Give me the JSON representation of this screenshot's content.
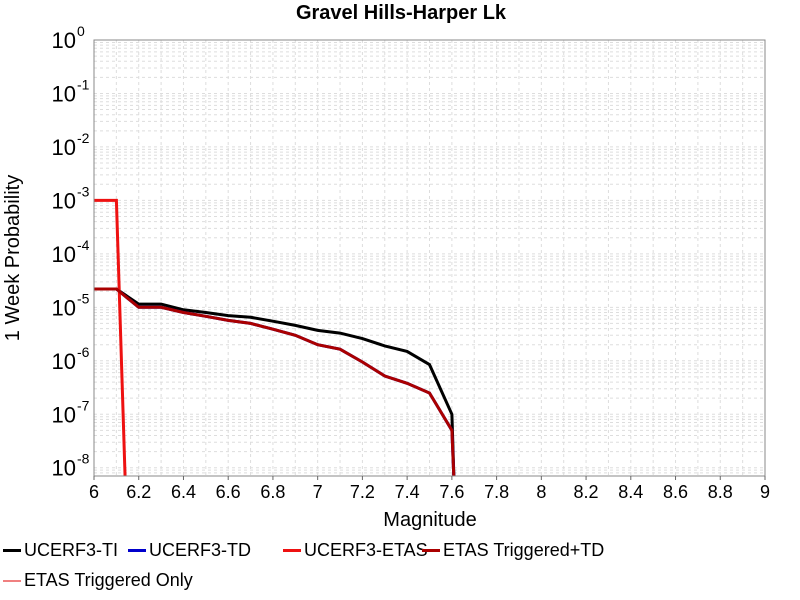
{
  "chart_data": {
    "type": "line",
    "title": "Gravel Hills-Harper Lk",
    "xlabel": "Magnitude",
    "ylabel": "1 Week Probability",
    "xlim": [
      6,
      9
    ],
    "ylim": [
      7e-09,
      1
    ],
    "yscale": "log",
    "grid": true,
    "legend_position": "bottom",
    "x_ticks": [
      "6",
      "6.2",
      "6.4",
      "6.6",
      "6.8",
      "7",
      "7.2",
      "7.4",
      "7.6",
      "7.8",
      "8",
      "8.2",
      "8.4",
      "8.6",
      "8.8",
      "9"
    ],
    "y_ticks": [
      {
        "base": "10",
        "exp": "0",
        "value": 1
      },
      {
        "base": "10",
        "exp": "-1",
        "value": 0.1
      },
      {
        "base": "10",
        "exp": "-2",
        "value": 0.01
      },
      {
        "base": "10",
        "exp": "-3",
        "value": 0.001
      },
      {
        "base": "10",
        "exp": "-4",
        "value": 0.0001
      },
      {
        "base": "10",
        "exp": "-5",
        "value": 1e-05
      },
      {
        "base": "10",
        "exp": "-6",
        "value": 1e-06
      },
      {
        "base": "10",
        "exp": "-7",
        "value": 1e-07
      },
      {
        "base": "10",
        "exp": "-8",
        "value": 1e-08
      }
    ],
    "series": [
      {
        "name": "UCERF3-TI",
        "color": "#000000",
        "x": [
          6.0,
          6.1,
          6.2,
          6.3,
          6.4,
          6.5,
          6.6,
          6.7,
          6.8,
          6.9,
          7.0,
          7.1,
          7.2,
          7.3,
          7.4,
          7.5,
          7.6,
          7.61
        ],
        "y": [
          2.2e-05,
          2.2e-05,
          1.15e-05,
          1.15e-05,
          9e-06,
          8e-06,
          7e-06,
          6.5e-06,
          5.5e-06,
          4.6e-06,
          3.7e-06,
          3.3e-06,
          2.6e-06,
          1.9e-06,
          1.5e-06,
          8.5e-07,
          1e-07,
          5e-09
        ]
      },
      {
        "name": "UCERF3-TD",
        "color": "#0000cc",
        "x": [
          6.0,
          6.1,
          6.2,
          6.3,
          6.4,
          6.5,
          6.6,
          6.7,
          6.8,
          6.9,
          7.0,
          7.1,
          7.2,
          7.3,
          7.4,
          7.5,
          7.6,
          7.61
        ],
        "y": [
          2.2e-05,
          2.2e-05,
          1e-05,
          1e-05,
          8e-06,
          6.8e-06,
          5.7e-06,
          5e-06,
          3.9e-06,
          3e-06,
          2e-06,
          1.65e-06,
          9.5e-07,
          5.2e-07,
          3.8e-07,
          2.5e-07,
          5e-08,
          5e-09
        ]
      },
      {
        "name": "UCERF3-ETAS",
        "color": "#ee1111",
        "x": [
          6.0,
          6.1,
          6.14
        ],
        "y": [
          0.001,
          0.001,
          5e-09
        ]
      },
      {
        "name": "ETAS Triggered+TD",
        "color": "#aa0000",
        "x": [
          6.0,
          6.1,
          6.2,
          6.3,
          6.4,
          6.5,
          6.6,
          6.7,
          6.8,
          6.9,
          7.0,
          7.1,
          7.2,
          7.3,
          7.4,
          7.5,
          7.6,
          7.61
        ],
        "y": [
          2.2e-05,
          2.2e-05,
          1e-05,
          1e-05,
          8e-06,
          6.8e-06,
          5.7e-06,
          5e-06,
          3.9e-06,
          3e-06,
          2e-06,
          1.65e-06,
          9.5e-07,
          5.2e-07,
          3.8e-07,
          2.5e-07,
          5e-08,
          5e-09
        ]
      },
      {
        "name": "ETAS Triggered Only",
        "color": "#f08080",
        "x": [],
        "y": []
      }
    ]
  }
}
